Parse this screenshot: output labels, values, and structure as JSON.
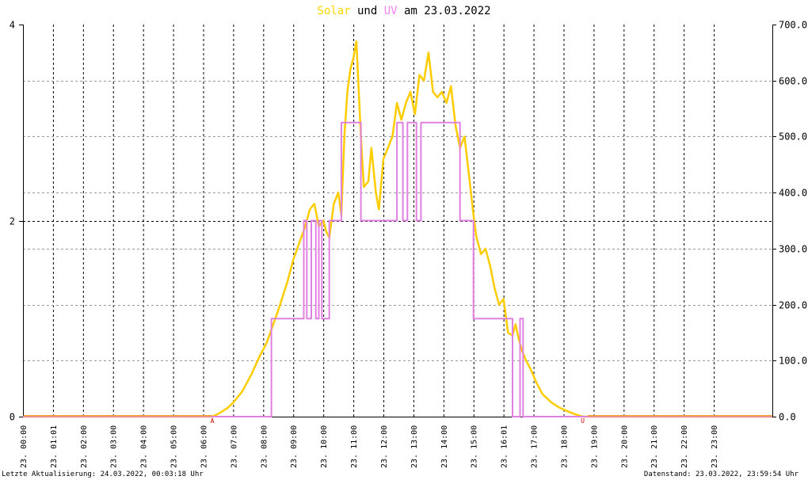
{
  "title": {
    "part1": "Solar",
    "part2": " und ",
    "part3": "UV",
    "part4": " am 23.03.2022"
  },
  "footer": {
    "left": "Letzte Aktualisierung: 24.03.2022, 00:03:18 Uhr",
    "right": "Datenstand: 23.03.2022, 23:59:54 Uhr"
  },
  "colors": {
    "solar": "#FFCC00",
    "uv": "#E080E0",
    "title_solar": "#FFD700",
    "title_uv": "#EE82EE",
    "marker": "#CC0000"
  },
  "chart_data": {
    "type": "line",
    "x_ticks": [
      "23. 00:00",
      "23. 01:01",
      "23. 02:00",
      "23. 03:00",
      "23. 04:00",
      "23. 05:00",
      "23. 06:00",
      "23. 07:00",
      "23. 08:00",
      "23. 09:00",
      "23. 10:00",
      "23. 11:00",
      "23. 12:00",
      "23. 13:00",
      "23. 14:00",
      "23. 15:00",
      "23. 16:01",
      "23. 17:00",
      "23. 18:00",
      "23. 19:00",
      "23. 20:00",
      "23. 21:00",
      "23. 22:00",
      "23. 23:00"
    ],
    "xlim": [
      0,
      24.95
    ],
    "ylim_left": [
      0,
      4
    ],
    "y_ticks_left": [
      "0",
      "2",
      "4"
    ],
    "ylim_right": [
      0,
      700
    ],
    "y_ticks_right": [
      "0.0",
      "100.0",
      "200.0",
      "300.0",
      "400.0",
      "500.0",
      "600.0",
      "700.0"
    ],
    "markers": [
      {
        "x": 6.32,
        "label": "A"
      },
      {
        "x": 18.65,
        "label": "U"
      }
    ],
    "grid": true,
    "series": [
      {
        "key": "solar",
        "axis": "right",
        "x": [
          0,
          6.3,
          6.5,
          6.8,
          7.0,
          7.3,
          7.6,
          7.9,
          8.1,
          8.3,
          8.5,
          8.8,
          9.0,
          9.2,
          9.4,
          9.55,
          9.7,
          9.85,
          10.0,
          10.1,
          10.2,
          10.35,
          10.5,
          10.6,
          10.7,
          10.8,
          10.9,
          11.0,
          11.1,
          11.25,
          11.35,
          11.5,
          11.6,
          11.75,
          11.85,
          12.0,
          12.15,
          12.3,
          12.45,
          12.6,
          12.75,
          12.9,
          13.05,
          13.2,
          13.35,
          13.5,
          13.65,
          13.8,
          13.95,
          14.1,
          14.25,
          14.4,
          14.55,
          14.7,
          14.85,
          15.0,
          15.1,
          15.25,
          15.4,
          15.55,
          15.7,
          15.85,
          16.0,
          16.15,
          16.3,
          16.4,
          16.5,
          16.6,
          16.75,
          16.9,
          17.1,
          17.3,
          17.6,
          17.9,
          18.2,
          18.45,
          18.65,
          18.8,
          24.95
        ],
        "y": [
          0,
          0,
          5,
          15,
          25,
          45,
          75,
          110,
          130,
          160,
          190,
          240,
          280,
          310,
          340,
          370,
          380,
          340,
          350,
          330,
          320,
          380,
          400,
          360,
          500,
          580,
          620,
          640,
          670,
          500,
          410,
          420,
          480,
          400,
          370,
          460,
          480,
          500,
          560,
          530,
          560,
          580,
          540,
          610,
          600,
          650,
          580,
          570,
          580,
          560,
          590,
          520,
          480,
          500,
          430,
          360,
          320,
          290,
          300,
          270,
          230,
          200,
          210,
          150,
          145,
          165,
          140,
          120,
          100,
          85,
          60,
          40,
          25,
          15,
          8,
          3,
          0,
          0,
          0
        ]
      },
      {
        "key": "uv",
        "axis": "left",
        "x": [
          0,
          8.27,
          8.27,
          9.35,
          9.35,
          9.45,
          9.45,
          9.6,
          9.6,
          9.75,
          9.75,
          9.85,
          9.85,
          9.95,
          9.95,
          10.2,
          10.2,
          10.6,
          10.6,
          11.25,
          11.25,
          12.45,
          12.45,
          12.65,
          12.65,
          12.8,
          12.8,
          13.1,
          13.1,
          13.25,
          13.25,
          14.55,
          14.55,
          15.0,
          15.0,
          16.3,
          16.3,
          16.55,
          16.55,
          16.65,
          16.65,
          24.95
        ],
        "y": [
          0,
          0,
          1,
          1,
          2,
          2,
          1,
          1,
          2,
          2,
          1,
          1,
          2,
          2,
          1,
          1,
          2,
          2,
          3,
          3,
          2,
          2,
          3,
          3,
          2,
          2,
          3,
          3,
          2,
          2,
          3,
          3,
          2,
          2,
          1,
          1,
          0,
          0,
          1,
          1,
          0,
          0
        ]
      }
    ]
  }
}
